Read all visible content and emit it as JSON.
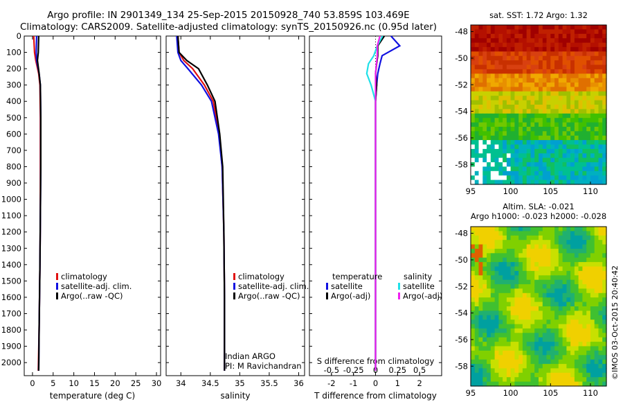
{
  "header": {
    "line1": "Argo profile: IN 2901349_134 25-Sep-2015 20150928_740 53.859S 103.469E",
    "line2": "Climatology: CARS2009. Satellite-adjusted climatology: synTS_20150926.nc (0.95d later)"
  },
  "stamp": "©IMOS 03-Oct-2015 20:40:42",
  "colors": {
    "climatology": "#e01010",
    "satellite": "#1010e0",
    "argo": "#000000",
    "satellite_s": "#20e0e8",
    "argo_s": "#f020f0"
  },
  "chart_data": [
    {
      "type": "line",
      "id": "temperature",
      "xlabel": "temperature (deg C)",
      "xlim": [
        -2,
        31
      ],
      "xticks": [
        "0",
        "5",
        "10",
        "15",
        "20",
        "25",
        "30"
      ],
      "xtick_values": [
        0,
        5,
        10,
        15,
        20,
        25,
        30
      ],
      "ylim": [
        0,
        2080
      ],
      "yticks": [
        "0",
        "100",
        "200",
        "300",
        "400",
        "500",
        "600",
        "700",
        "800",
        "900",
        "1000",
        "1100",
        "1200",
        "1300",
        "1400",
        "1500",
        "1600",
        "1700",
        "1800",
        "1900",
        "2000"
      ],
      "ytick_values": [
        0,
        100,
        200,
        300,
        400,
        500,
        600,
        700,
        800,
        900,
        1000,
        1100,
        1200,
        1300,
        1400,
        1500,
        1600,
        1700,
        1800,
        1900,
        2000
      ],
      "legend": [
        "climatology",
        "satellite-adj. clim.",
        "Argo(..raw -QC)"
      ],
      "series": [
        {
          "name": "climatology",
          "color_key": "climatology",
          "x": [
            0.3,
            0.5,
            0.8,
            1.5,
            1.8,
            1.9,
            1.9,
            1.9,
            1.8,
            1.6,
            1.4
          ],
          "y": [
            0,
            100,
            150,
            230,
            300,
            500,
            800,
            1100,
            1400,
            1800,
            2050
          ]
        },
        {
          "name": "satellite-adj. clim.",
          "color_key": "satellite",
          "x": [
            1.0,
            0.9,
            1.0,
            1.6,
            1.9,
            2.0,
            2.0,
            1.9,
            1.8,
            1.6,
            1.5
          ],
          "y": [
            0,
            100,
            150,
            230,
            300,
            500,
            800,
            1100,
            1400,
            1800,
            2050
          ]
        },
        {
          "name": "Argo(..raw -QC)",
          "color_key": "argo",
          "x": [
            1.5,
            1.4,
            1.2,
            1.6,
            1.9,
            2.0,
            2.0,
            1.9,
            1.8,
            1.6,
            1.5
          ],
          "y": [
            0,
            100,
            150,
            230,
            300,
            500,
            800,
            1100,
            1400,
            1800,
            2050
          ]
        }
      ]
    },
    {
      "type": "line",
      "id": "salinity",
      "xlabel": "salinity",
      "xlim": [
        33.75,
        36.1
      ],
      "xticks": [
        "34",
        "34.5",
        "35",
        "35.5",
        "36"
      ],
      "xtick_values": [
        34,
        34.5,
        35,
        35.5,
        36
      ],
      "ylim": [
        0,
        2080
      ],
      "legend": [
        "climatology",
        "satellite-adj. clim.",
        "Argo(..raw -QC)"
      ],
      "annotation": [
        "Indian ARGO",
        "PI: M Ravichandran"
      ],
      "series": [
        {
          "name": "climatology",
          "color_key": "climatology",
          "x": [
            33.95,
            33.97,
            34.05,
            34.2,
            34.4,
            34.55,
            34.65,
            34.7,
            34.73,
            34.74,
            34.74
          ],
          "y": [
            0,
            100,
            150,
            200,
            300,
            400,
            600,
            800,
            1200,
            1600,
            2050
          ]
        },
        {
          "name": "satellite-adj. clim.",
          "color_key": "satellite",
          "x": [
            33.93,
            33.95,
            34.0,
            34.12,
            34.35,
            34.52,
            34.64,
            34.7,
            34.73,
            34.74,
            34.74
          ],
          "y": [
            0,
            100,
            150,
            200,
            300,
            400,
            600,
            800,
            1200,
            1600,
            2050
          ]
        },
        {
          "name": "Argo(..raw -QC)",
          "color_key": "argo",
          "x": [
            33.95,
            33.97,
            34.1,
            34.3,
            34.45,
            34.58,
            34.66,
            34.71,
            34.73,
            34.74,
            34.74
          ],
          "y": [
            0,
            100,
            150,
            200,
            300,
            400,
            600,
            800,
            1200,
            1600,
            2050
          ]
        }
      ]
    },
    {
      "type": "line",
      "id": "difference",
      "xlabel": "T difference from climatology",
      "xlabel_top": "S difference from climatology",
      "xlim": [
        -3,
        3
      ],
      "xticks": [
        "-2",
        "-1",
        "0",
        "1",
        "2"
      ],
      "xtick_values": [
        -2,
        -1,
        0,
        1,
        2
      ],
      "xticks_top": [
        "-0.5",
        "-0.25",
        "0",
        "0.25",
        "0.5"
      ],
      "ylim": [
        0,
        2080
      ],
      "legend_temperature": {
        "title": "temperature",
        "items": [
          "satellite",
          "Argo(-adj)"
        ]
      },
      "legend_salinity": {
        "title": "salinity",
        "items": [
          "satellite",
          "Argo(-adj)"
        ]
      },
      "series": [
        {
          "name": "temperature satellite",
          "color_key": "satellite",
          "x": [
            0.7,
            1.1,
            0.3,
            0.2,
            0.1,
            0.05,
            0.0,
            0.0,
            0.0,
            0.0
          ],
          "y": [
            0,
            60,
            120,
            170,
            230,
            300,
            400,
            700,
            1200,
            2050
          ]
        },
        {
          "name": "temperature Argo(-adj)",
          "color_key": "argo",
          "x": [
            0.4,
            0.1,
            0.1,
            0.05,
            0.0,
            0.05,
            0.0,
            0.0,
            0.0,
            0.0
          ],
          "y": [
            0,
            60,
            120,
            170,
            230,
            300,
            400,
            700,
            1200,
            2050
          ]
        },
        {
          "name": "salinity satellite",
          "color_key": "satellite_s",
          "x": [
            0.08,
            0.02,
            -0.02,
            -0.08,
            -0.1,
            -0.05,
            0.0,
            0.0,
            0.0,
            0.0
          ],
          "y": [
            0,
            60,
            120,
            170,
            230,
            300,
            400,
            700,
            1200,
            2050
          ]
        },
        {
          "name": "salinity Argo(-adj)",
          "color_key": "argo_s",
          "x": [
            0.05,
            0.02,
            0.02,
            0.01,
            0.0,
            0.0,
            0.0,
            0.0,
            0.0,
            0.0
          ],
          "y": [
            0,
            60,
            120,
            170,
            230,
            300,
            400,
            700,
            1200,
            2050
          ]
        }
      ]
    },
    {
      "type": "heatmap",
      "id": "sst-map",
      "title": "sat. SST: 1.72 Argo: 1.32",
      "xlim": [
        95,
        112
      ],
      "ylim": [
        -59.5,
        -47.5
      ],
      "xticks": [
        "95",
        "100",
        "105",
        "110"
      ],
      "xtick_values": [
        95,
        100,
        105,
        110
      ],
      "yticks": [
        "-48",
        "-50",
        "-52",
        "-54",
        "-56",
        "-58"
      ],
      "ytick_values": [
        -48,
        -50,
        -52,
        -54,
        -56,
        -58
      ]
    },
    {
      "type": "heatmap",
      "id": "sla-map",
      "title": "Altim. SLA: -0.021",
      "subtitle": "Argo h1000: -0.023 h2000: -0.028",
      "xlim": [
        95,
        112
      ],
      "ylim": [
        -59.5,
        -47.5
      ],
      "xticks": [
        "95",
        "100",
        "105",
        "110"
      ],
      "xtick_values": [
        95,
        100,
        105,
        110
      ],
      "yticks": [
        "-48",
        "-50",
        "-52",
        "-54",
        "-56",
        "-58"
      ],
      "ytick_values": [
        -48,
        -50,
        -52,
        -54,
        -56,
        -58
      ]
    }
  ]
}
